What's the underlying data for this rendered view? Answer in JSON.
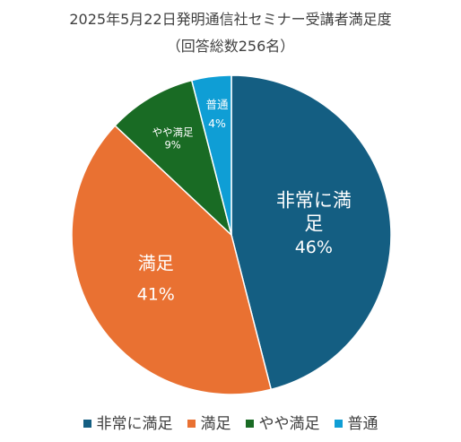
{
  "chart_data": {
    "type": "pie",
    "title": "2025年5月22日発明通信社セミナー受講者満足度",
    "subtitle": "（回答総数256名）",
    "categories": [
      "非常に満足",
      "満足",
      "やや満足",
      "普通"
    ],
    "values": [
      46,
      41,
      9,
      4
    ],
    "percent_labels": [
      "46%",
      "41%",
      "9%",
      "4%"
    ],
    "slice_labels": [
      "非常に満\n足",
      "満足",
      "やや満足",
      "普通"
    ],
    "colors": [
      "#145E82",
      "#E97132",
      "#196B24",
      "#0F9ED5"
    ],
    "legend_position": "bottom"
  }
}
